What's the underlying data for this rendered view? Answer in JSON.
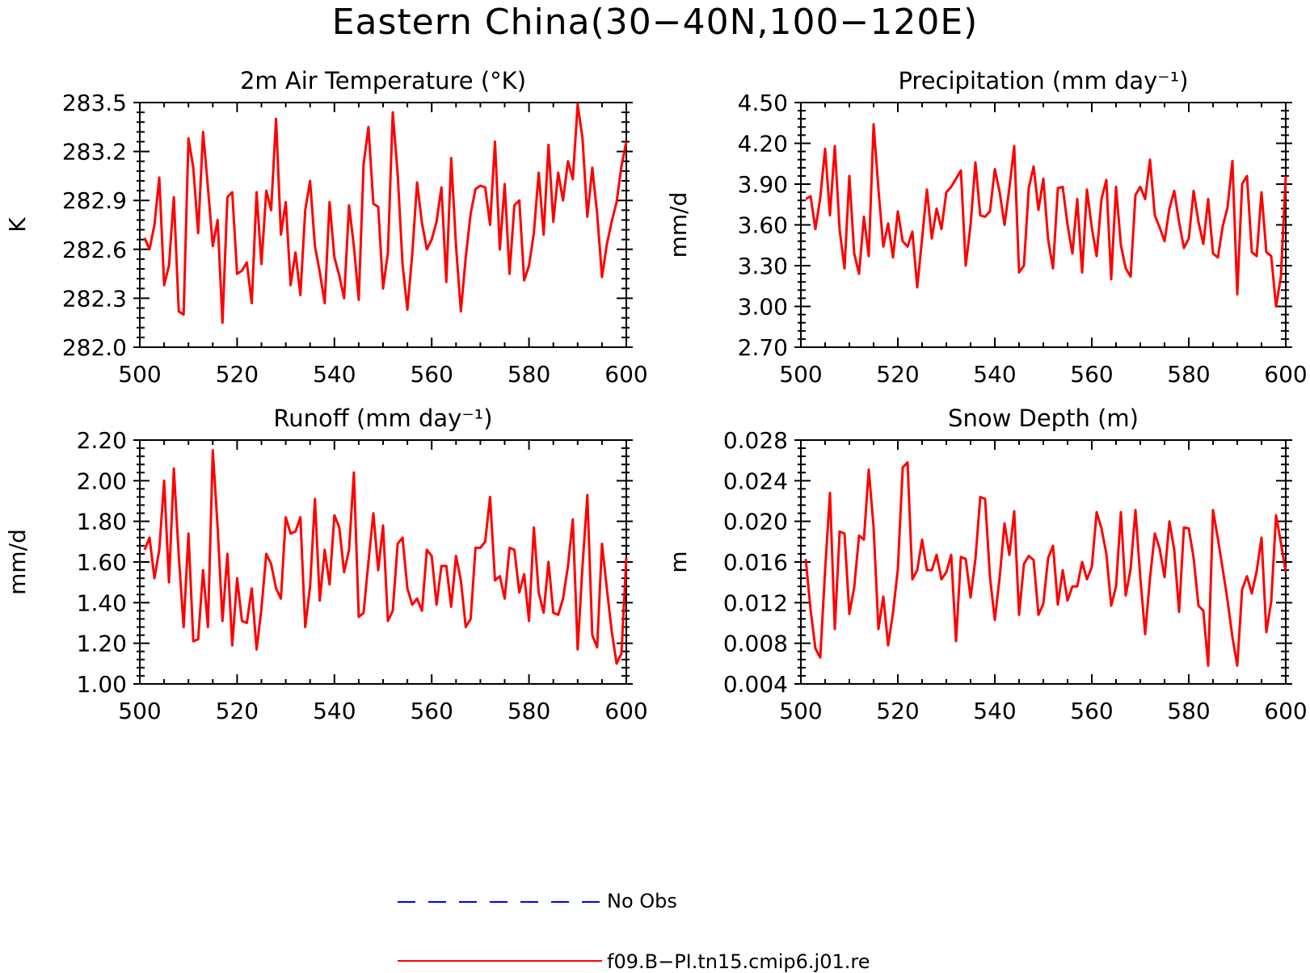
{
  "title": "Eastern China(30−40N,100−120E)",
  "colors": {
    "series": "#ff0000",
    "obs": "#0000ff",
    "axis": "#000000"
  },
  "legend": [
    {
      "label": "No Obs",
      "style": "dashed",
      "color": "#0000ff"
    },
    {
      "label": "f09.B−PI.tn15.cmip6.j01.re",
      "style": "solid",
      "color": "#ff0000"
    }
  ],
  "chart_data": [
    {
      "type": "line",
      "title": "2m Air Temperature (°K)",
      "ylabel": "K",
      "xlim": [
        500,
        600
      ],
      "ylim": [
        282.0,
        283.5
      ],
      "xticks": [
        "500",
        "520",
        "540",
        "560",
        "580",
        "600"
      ],
      "yticks": [
        "282.0",
        "282.3",
        "282.6",
        "282.9",
        "283.2",
        "283.5"
      ],
      "x": [
        501,
        502,
        503,
        504,
        505,
        506,
        507,
        508,
        509,
        510,
        511,
        512,
        513,
        514,
        515,
        516,
        517,
        518,
        519,
        520,
        521,
        522,
        523,
        524,
        525,
        526,
        527,
        528,
        529,
        530,
        531,
        532,
        533,
        534,
        535,
        536,
        537,
        538,
        539,
        540,
        541,
        542,
        543,
        544,
        545,
        546,
        547,
        548,
        549,
        550,
        551,
        552,
        553,
        554,
        555,
        556,
        557,
        558,
        559,
        560,
        561,
        562,
        563,
        564,
        565,
        566,
        567,
        568,
        569,
        570,
        571,
        572,
        573,
        574,
        575,
        576,
        577,
        578,
        579,
        580,
        581,
        582,
        583,
        584,
        585,
        586,
        587,
        588,
        589,
        590,
        591,
        592,
        593,
        594,
        595,
        596,
        597,
        598,
        599,
        600
      ],
      "series": [
        {
          "name": "f09.B−PI.tn15.cmip6.j01.re",
          "values": [
            282.67,
            282.6,
            282.75,
            283.04,
            282.38,
            282.5,
            282.92,
            282.22,
            282.2,
            283.28,
            283.1,
            282.7,
            283.32,
            282.98,
            282.62,
            282.78,
            282.15,
            282.92,
            282.95,
            282.45,
            282.47,
            282.52,
            282.27,
            282.95,
            282.51,
            282.96,
            282.84,
            283.4,
            282.69,
            282.89,
            282.38,
            282.58,
            282.32,
            282.84,
            283.02,
            282.62,
            282.46,
            282.27,
            282.89,
            282.55,
            282.44,
            282.3,
            282.87,
            282.62,
            282.29,
            283.12,
            283.35,
            282.88,
            282.86,
            282.36,
            282.58,
            283.44,
            283.06,
            282.51,
            282.23,
            282.57,
            283.01,
            282.76,
            282.6,
            282.66,
            282.77,
            282.98,
            282.4,
            283.16,
            282.62,
            282.22,
            282.55,
            282.82,
            282.97,
            282.99,
            282.98,
            282.75,
            283.26,
            282.6,
            283.0,
            282.45,
            282.87,
            282.9,
            282.41,
            282.5,
            282.7,
            283.07,
            282.69,
            283.24,
            282.77,
            283.07,
            282.9,
            283.14,
            283.03,
            283.49,
            283.28,
            282.8,
            283.1,
            282.82,
            282.43,
            282.63,
            282.77,
            282.89,
            283.11,
            283.26
          ]
        }
      ]
    },
    {
      "type": "line",
      "title": "Precipitation (mm day⁻¹)",
      "ylabel": "mm/d",
      "xlim": [
        500,
        600
      ],
      "ylim": [
        2.7,
        4.5
      ],
      "xticks": [
        "500",
        "520",
        "540",
        "560",
        "580",
        "600"
      ],
      "yticks": [
        "2.70",
        "3.00",
        "3.30",
        "3.60",
        "3.90",
        "4.20",
        "4.50"
      ],
      "x": [
        501,
        502,
        503,
        504,
        505,
        506,
        507,
        508,
        509,
        510,
        511,
        512,
        513,
        514,
        515,
        516,
        517,
        518,
        519,
        520,
        521,
        522,
        523,
        524,
        525,
        526,
        527,
        528,
        529,
        530,
        531,
        532,
        533,
        534,
        535,
        536,
        537,
        538,
        539,
        540,
        541,
        542,
        543,
        544,
        545,
        546,
        547,
        548,
        549,
        550,
        551,
        552,
        553,
        554,
        555,
        556,
        557,
        558,
        559,
        560,
        561,
        562,
        563,
        564,
        565,
        566,
        567,
        568,
        569,
        570,
        571,
        572,
        573,
        574,
        575,
        576,
        577,
        578,
        579,
        580,
        581,
        582,
        583,
        584,
        585,
        586,
        587,
        588,
        589,
        590,
        591,
        592,
        593,
        594,
        595,
        596,
        597,
        598,
        599,
        600
      ],
      "series": [
        {
          "name": "f09.B−PI.tn15.cmip6.j01.re",
          "values": [
            3.79,
            3.81,
            3.57,
            3.8,
            4.16,
            3.67,
            4.18,
            3.56,
            3.28,
            3.96,
            3.39,
            3.24,
            3.66,
            3.37,
            4.34,
            3.86,
            3.44,
            3.61,
            3.36,
            3.7,
            3.48,
            3.44,
            3.55,
            3.14,
            3.5,
            3.86,
            3.5,
            3.72,
            3.57,
            3.84,
            3.88,
            3.94,
            4.0,
            3.3,
            3.6,
            4.06,
            3.67,
            3.66,
            3.7,
            4.01,
            3.84,
            3.6,
            3.87,
            4.18,
            3.25,
            3.3,
            3.87,
            4.03,
            3.71,
            3.94,
            3.49,
            3.28,
            3.87,
            3.88,
            3.6,
            3.39,
            3.79,
            3.25,
            3.86,
            3.58,
            3.37,
            3.79,
            3.93,
            3.2,
            3.88,
            3.45,
            3.28,
            3.22,
            3.82,
            3.88,
            3.79,
            4.08,
            3.67,
            3.58,
            3.48,
            3.72,
            3.85,
            3.62,
            3.43,
            3.5,
            3.85,
            3.62,
            3.46,
            3.79,
            3.39,
            3.36,
            3.59,
            3.73,
            4.07,
            3.09,
            3.9,
            3.96,
            3.4,
            3.37,
            3.84,
            3.4,
            3.37,
            3.0,
            3.22,
            3.96
          ]
        }
      ]
    },
    {
      "type": "line",
      "title": "Runoff (mm day⁻¹)",
      "ylabel": "mm/d",
      "xlim": [
        500,
        600
      ],
      "ylim": [
        1.0,
        2.2
      ],
      "xticks": [
        "500",
        "520",
        "540",
        "560",
        "580",
        "600"
      ],
      "yticks": [
        "1.00",
        "1.20",
        "1.40",
        "1.60",
        "1.80",
        "2.00",
        "2.20"
      ],
      "x": [
        501,
        502,
        503,
        504,
        505,
        506,
        507,
        508,
        509,
        510,
        511,
        512,
        513,
        514,
        515,
        516,
        517,
        518,
        519,
        520,
        521,
        522,
        523,
        524,
        525,
        526,
        527,
        528,
        529,
        530,
        531,
        532,
        533,
        534,
        535,
        536,
        537,
        538,
        539,
        540,
        541,
        542,
        543,
        544,
        545,
        546,
        547,
        548,
        549,
        550,
        551,
        552,
        553,
        554,
        555,
        556,
        557,
        558,
        559,
        560,
        561,
        562,
        563,
        564,
        565,
        566,
        567,
        568,
        569,
        570,
        571,
        572,
        573,
        574,
        575,
        576,
        577,
        578,
        579,
        580,
        581,
        582,
        583,
        584,
        585,
        586,
        587,
        588,
        589,
        590,
        591,
        592,
        593,
        594,
        595,
        596,
        597,
        598,
        599,
        600
      ],
      "series": [
        {
          "name": "f09.B−PI.tn15.cmip6.j01.re",
          "values": [
            1.66,
            1.72,
            1.52,
            1.66,
            2.0,
            1.5,
            2.06,
            1.63,
            1.28,
            1.74,
            1.21,
            1.22,
            1.56,
            1.28,
            2.15,
            1.77,
            1.31,
            1.64,
            1.19,
            1.52,
            1.31,
            1.3,
            1.47,
            1.17,
            1.37,
            1.64,
            1.59,
            1.47,
            1.42,
            1.82,
            1.74,
            1.75,
            1.82,
            1.28,
            1.48,
            1.91,
            1.41,
            1.66,
            1.49,
            1.83,
            1.77,
            1.55,
            1.66,
            2.04,
            1.33,
            1.35,
            1.6,
            1.84,
            1.56,
            1.78,
            1.31,
            1.36,
            1.69,
            1.72,
            1.47,
            1.39,
            1.42,
            1.36,
            1.66,
            1.63,
            1.39,
            1.58,
            1.58,
            1.38,
            1.63,
            1.51,
            1.28,
            1.32,
            1.67,
            1.67,
            1.7,
            1.92,
            1.51,
            1.53,
            1.42,
            1.67,
            1.66,
            1.45,
            1.54,
            1.31,
            1.77,
            1.45,
            1.35,
            1.6,
            1.35,
            1.34,
            1.42,
            1.58,
            1.81,
            1.17,
            1.58,
            1.93,
            1.24,
            1.18,
            1.69,
            1.47,
            1.26,
            1.1,
            1.15,
            1.62
          ]
        }
      ]
    },
    {
      "type": "line",
      "title": "Snow Depth (m)",
      "ylabel": "m",
      "xlim": [
        500,
        600
      ],
      "ylim": [
        0.004,
        0.028
      ],
      "xticks": [
        "500",
        "520",
        "540",
        "560",
        "580",
        "600"
      ],
      "yticks": [
        "0.004",
        "0.008",
        "0.012",
        "0.016",
        "0.020",
        "0.024",
        "0.028"
      ],
      "x": [
        501,
        502,
        503,
        504,
        505,
        506,
        507,
        508,
        509,
        510,
        511,
        512,
        513,
        514,
        515,
        516,
        517,
        518,
        519,
        520,
        521,
        522,
        523,
        524,
        525,
        526,
        527,
        528,
        529,
        530,
        531,
        532,
        533,
        534,
        535,
        536,
        537,
        538,
        539,
        540,
        541,
        542,
        543,
        544,
        545,
        546,
        547,
        548,
        549,
        550,
        551,
        552,
        553,
        554,
        555,
        556,
        557,
        558,
        559,
        560,
        561,
        562,
        563,
        564,
        565,
        566,
        567,
        568,
        569,
        570,
        571,
        572,
        573,
        574,
        575,
        576,
        577,
        578,
        579,
        580,
        581,
        582,
        583,
        584,
        585,
        586,
        587,
        588,
        589,
        590,
        591,
        592,
        593,
        594,
        595,
        596,
        597,
        598,
        599,
        600
      ],
      "series": [
        {
          "name": "f09.B−PI.tn15.cmip6.j01.re",
          "values": [
            0.0163,
            0.0113,
            0.0075,
            0.0066,
            0.0152,
            0.0228,
            0.0094,
            0.019,
            0.0188,
            0.0109,
            0.0135,
            0.0186,
            0.0182,
            0.0251,
            0.0194,
            0.0094,
            0.0126,
            0.0078,
            0.011,
            0.0153,
            0.0253,
            0.0258,
            0.0143,
            0.0152,
            0.0182,
            0.0152,
            0.0152,
            0.0167,
            0.0143,
            0.015,
            0.0167,
            0.0082,
            0.0165,
            0.0163,
            0.0125,
            0.0163,
            0.0224,
            0.0222,
            0.0145,
            0.0103,
            0.0145,
            0.0198,
            0.0167,
            0.021,
            0.0108,
            0.0158,
            0.0166,
            0.0162,
            0.0108,
            0.0119,
            0.0164,
            0.0176,
            0.0118,
            0.0152,
            0.0122,
            0.0136,
            0.0136,
            0.016,
            0.0143,
            0.0155,
            0.0209,
            0.0193,
            0.0168,
            0.0117,
            0.0136,
            0.0209,
            0.0127,
            0.0153,
            0.0211,
            0.0145,
            0.0089,
            0.0144,
            0.0188,
            0.0173,
            0.0145,
            0.02,
            0.0172,
            0.0111,
            0.0194,
            0.0193,
            0.0164,
            0.0117,
            0.0112,
            0.0058,
            0.0211,
            0.0183,
            0.0153,
            0.0122,
            0.0086,
            0.0058,
            0.0133,
            0.0146,
            0.0129,
            0.0151,
            0.0184,
            0.0091,
            0.0121,
            0.0206,
            0.0179,
            0.015
          ]
        }
      ]
    }
  ]
}
